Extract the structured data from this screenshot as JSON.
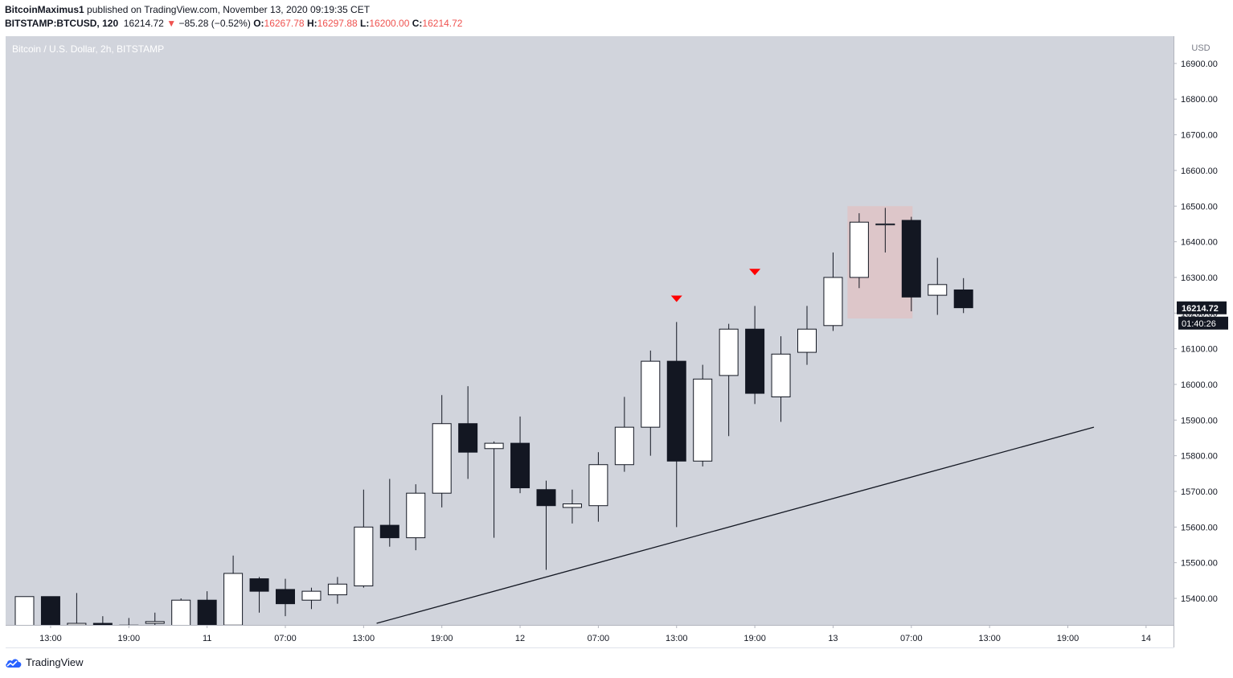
{
  "header": {
    "author": "BitcoinMaximus1",
    "published_text": "published on TradingView.com, November 13, 2020 09:19:35 CET",
    "symbol": "BITSTAMP:BTCUSD, 120",
    "last_price": "16214.72",
    "change": "−85.28 (−0.52%)",
    "o_label": "O:",
    "o_value": "16267.78",
    "h_label": "H:",
    "h_value": "16297.88",
    "l_label": "L:",
    "l_value": "16200.00",
    "c_label": "C:",
    "c_value": "16214.72"
  },
  "chart_title": "Bitcoin / U.S. Dollar, 2h, BITSTAMP",
  "brand": "TradingView",
  "colors": {
    "plot_bg": "#d1d4dc",
    "bull_body": "#ffffff",
    "bear_body": "#131722",
    "wick": "#131722",
    "marker": "#ff0000",
    "highlight": "#e7b9b9"
  },
  "chart_data": {
    "type": "candlestick",
    "currency": "USD",
    "ylim": [
      15330,
      16990
    ],
    "y_ticks": [
      15400,
      15500,
      15600,
      15700,
      15800,
      15900,
      16000,
      16100,
      16200,
      16300,
      16400,
      16500,
      16600,
      16700,
      16800,
      16900
    ],
    "x_tick_labels": [
      "13:00",
      "19:00",
      "11",
      "07:00",
      "13:00",
      "19:00",
      "12",
      "07:00",
      "13:00",
      "19:00",
      "13",
      "07:00",
      "13:00",
      "19:00",
      "14"
    ],
    "current_price": "16214.72",
    "countdown": "01:40:26",
    "candles": [
      {
        "o": 15285,
        "h": 15405,
        "l": 15285,
        "c": 15405
      },
      {
        "o": 15405,
        "h": 15405,
        "l": 15255,
        "c": 15325
      },
      {
        "o": 15325,
        "h": 15415,
        "l": 15250,
        "c": 15330
      },
      {
        "o": 15330,
        "h": 15350,
        "l": 15270,
        "c": 15325
      },
      {
        "o": 15325,
        "h": 15345,
        "l": 15250,
        "c": 15325
      },
      {
        "o": 15330,
        "h": 15360,
        "l": 15280,
        "c": 15335
      },
      {
        "o": 15320,
        "h": 15400,
        "l": 15315,
        "c": 15395
      },
      {
        "o": 15395,
        "h": 15420,
        "l": 15300,
        "c": 15325
      },
      {
        "o": 15325,
        "h": 15520,
        "l": 15305,
        "c": 15470
      },
      {
        "o": 15455,
        "h": 15460,
        "l": 15360,
        "c": 15420
      },
      {
        "o": 15425,
        "h": 15455,
        "l": 15350,
        "c": 15385
      },
      {
        "o": 15395,
        "h": 15430,
        "l": 15370,
        "c": 15420
      },
      {
        "o": 15410,
        "h": 15460,
        "l": 15385,
        "c": 15440
      },
      {
        "o": 15435,
        "h": 15705,
        "l": 15430,
        "c": 15600
      },
      {
        "o": 15605,
        "h": 15735,
        "l": 15545,
        "c": 15570
      },
      {
        "o": 15570,
        "h": 15720,
        "l": 15535,
        "c": 15695
      },
      {
        "o": 15695,
        "h": 15970,
        "l": 15655,
        "c": 15890
      },
      {
        "o": 15890,
        "h": 15995,
        "l": 15735,
        "c": 15810
      },
      {
        "o": 15820,
        "h": 15840,
        "l": 15570,
        "c": 15835
      },
      {
        "o": 15835,
        "h": 15910,
        "l": 15695,
        "c": 15710
      },
      {
        "o": 15705,
        "h": 15730,
        "l": 15480,
        "c": 15660
      },
      {
        "o": 15655,
        "h": 15705,
        "l": 15610,
        "c": 15665
      },
      {
        "o": 15660,
        "h": 15810,
        "l": 15615,
        "c": 15775
      },
      {
        "o": 15775,
        "h": 15965,
        "l": 15755,
        "c": 15880
      },
      {
        "o": 15880,
        "h": 16095,
        "l": 15800,
        "c": 16065
      },
      {
        "o": 16065,
        "h": 16175,
        "l": 15600,
        "c": 15785
      },
      {
        "o": 15785,
        "h": 16055,
        "l": 15770,
        "c": 16015
      },
      {
        "o": 16025,
        "h": 16170,
        "l": 15855,
        "c": 16155
      },
      {
        "o": 16155,
        "h": 16220,
        "l": 15945,
        "c": 15975
      },
      {
        "o": 15965,
        "h": 16135,
        "l": 15895,
        "c": 16085
      },
      {
        "o": 16090,
        "h": 16220,
        "l": 16055,
        "c": 16155
      },
      {
        "o": 16165,
        "h": 16370,
        "l": 16150,
        "c": 16300
      },
      {
        "o": 16300,
        "h": 16480,
        "l": 16270,
        "c": 16455
      },
      {
        "o": 16450,
        "h": 16495,
        "l": 16370,
        "c": 16450
      },
      {
        "o": 16460,
        "h": 16470,
        "l": 16205,
        "c": 16245
      },
      {
        "o": 16250,
        "h": 16355,
        "l": 16195,
        "c": 16280
      },
      {
        "o": 16265,
        "h": 16298,
        "l": 16200,
        "c": 16215
      }
    ],
    "highlight_zone": {
      "candle_from": 32,
      "candle_to": 34,
      "price_low": 16185,
      "price_high": 16500
    },
    "markers": [
      {
        "candle": 25,
        "price": 16240
      },
      {
        "candle": 28,
        "price": 16315
      }
    ],
    "trendline": {
      "from": {
        "candle": 13.5,
        "price": 15330
      },
      "to": {
        "candle": 41,
        "price": 15880
      }
    }
  }
}
